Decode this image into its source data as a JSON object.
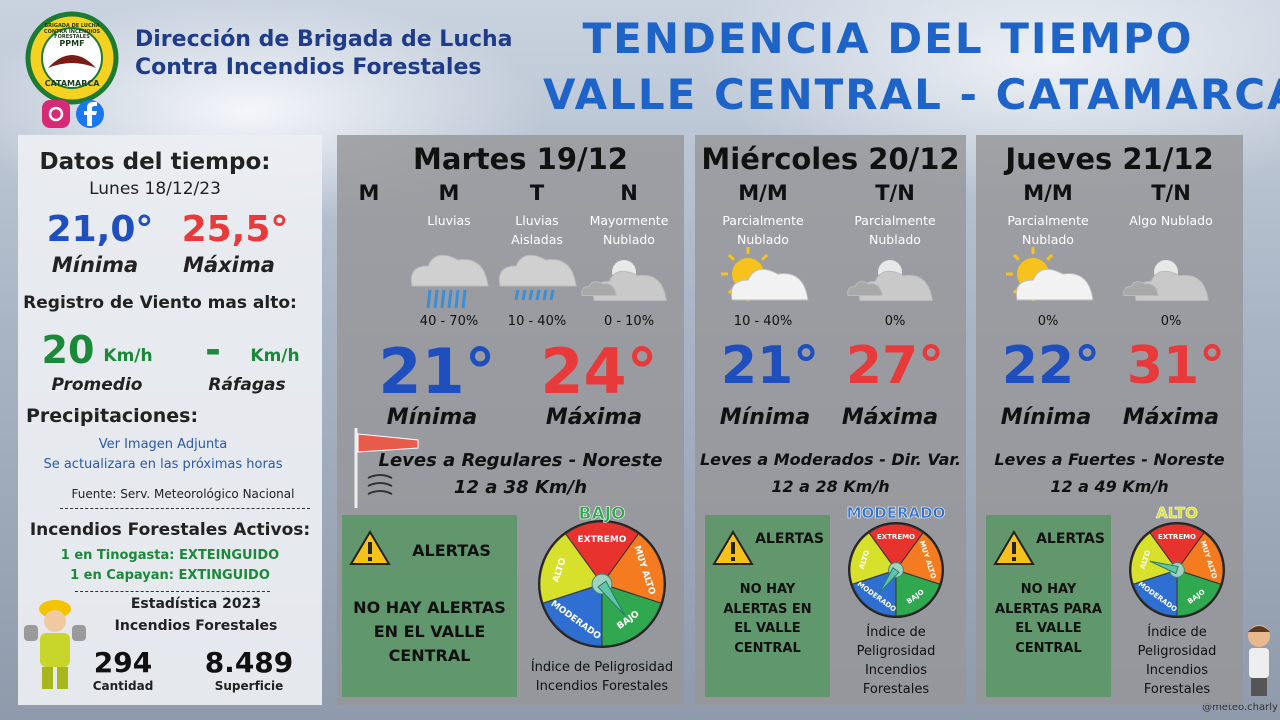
{
  "header": {
    "org_name_line1": "Dirección de Brigada de Lucha",
    "org_name_line2": "Contra Incendios Forestales",
    "logo_top": "BRIGADA DE LUCHA CONTRA INCENDIOS FORESTALES",
    "logo_center": "PPMF",
    "logo_bottom": "CATAMARCA",
    "title_line1": "TENDENCIA DEL TIEMPO",
    "title_line2": "VALLE CENTRAL - CATAMARCA"
  },
  "current": {
    "title": "Datos del tiempo:",
    "date": "Lunes 18/12/23",
    "min": "21,0°",
    "min_label": "Mínima",
    "max": "25,5°",
    "max_label": "Máxima",
    "wind_title": "Registro de Viento mas alto:",
    "wind_avg": "20",
    "wind_avg_unit": "Km/h",
    "wind_avg_label": "Promedio",
    "wind_gust": "-",
    "wind_gust_unit": "Km/h",
    "wind_gust_label": "Ráfagas",
    "precip_title": "Precipitaciones:",
    "precip_line1": "Ver Imagen Adjunta",
    "precip_line2": "Se actualizara en las próximas horas",
    "source": "Fuente: Serv. Meteorológico Nacional",
    "fires_title": "Incendios Forestales Activos:",
    "fires": [
      "1 en Tinogasta: EXTEINGUIDO",
      "1 en Capayan: EXTINGUIDO"
    ],
    "stats_title": "Estadística 2023",
    "stats_subtitle": "Incendios Forestales",
    "count": "294",
    "count_label": "Cantidad",
    "area": "8.489",
    "area_label": "Superficie"
  },
  "gauge_labels": [
    "EXTREMO",
    "MUY ALTO",
    "BAJO",
    "MODERADO",
    "ALTO"
  ],
  "days": [
    {
      "title": "Martes 19/12",
      "periods": [
        {
          "label": "M"
        },
        {
          "label": "M",
          "desc": "Lluvias",
          "prob": "40 - 70%"
        },
        {
          "label": "T",
          "desc": "Lluvias Aisladas",
          "prob": "10 - 40%"
        },
        {
          "label": "N",
          "desc": "Mayormente Nublado",
          "prob": "0 - 10%"
        }
      ],
      "min": "21°",
      "min_label": "Mínima",
      "max": "24°",
      "max_label": "Máxima",
      "wind": "Leves a Regulares - Noreste",
      "wind_speed": "12 a 38 Km/h",
      "alert_title": "ALERTAS",
      "alert_text": "NO HAY ALERTAS EN EL VALLE CENTRAL",
      "risk_level": "BAJO",
      "risk_label": "Índice de Peligrosidad Incendios Forestales"
    },
    {
      "title": "Miércoles 20/12",
      "periods": [
        {
          "label": "M/M",
          "desc": "Parcialmente Nublado",
          "prob": "10 - 40%"
        },
        {
          "label": "T/N",
          "desc": "Parcialmente Nublado",
          "prob": "0%"
        }
      ],
      "min": "21°",
      "min_label": "Mínima",
      "max": "27°",
      "max_label": "Máxima",
      "wind": "Leves a Moderados - Dir. Var.",
      "wind_speed": "12 a 28 Km/h",
      "alert_title": "ALERTAS",
      "alert_text": "NO HAY ALERTAS EN EL VALLE CENTRAL",
      "risk_level": "MODERADO",
      "risk_label": "Índice de Peligrosidad Incendios Forestales"
    },
    {
      "title": "Jueves 21/12",
      "periods": [
        {
          "label": "M/M",
          "desc": "Parcialmente Nublado",
          "prob": "0%"
        },
        {
          "label": "T/N",
          "desc": "Algo Nublado",
          "prob": "0%"
        }
      ],
      "min": "22°",
      "min_label": "Mínima",
      "max": "31°",
      "max_label": "Máxima",
      "wind": "Leves a Fuertes - Noreste",
      "wind_speed": "12 a 49 Km/h",
      "alert_title": "ALERTAS",
      "alert_text": "NO HAY ALERTAS PARA EL VALLE CENTRAL",
      "risk_level": "ALTO",
      "risk_label": "Índice de Peligrosidad Incendios Forestales"
    }
  ],
  "footer": {
    "credit": "@meteo.charly"
  }
}
